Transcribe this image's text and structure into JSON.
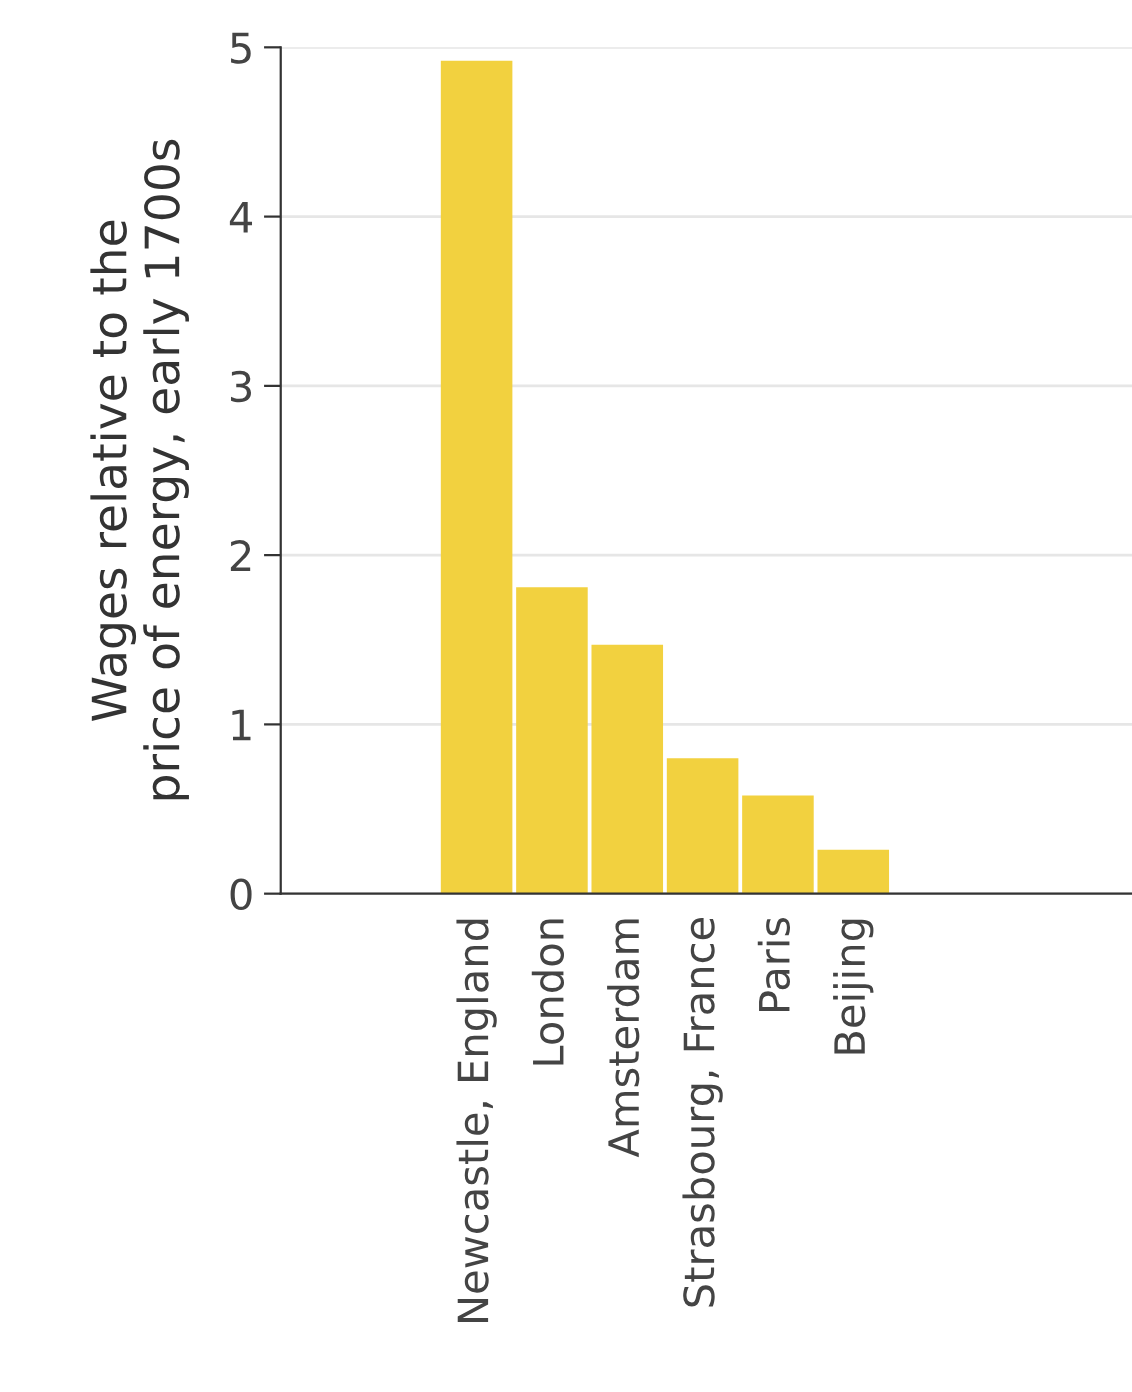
{
  "chart_data": {
    "type": "bar",
    "ylabel": "Wages relative to the\nprice of energy, early 1700s",
    "categories": [
      "Newcastle, England",
      "London",
      "Amsterdam",
      "Strasbourg, France",
      "Paris",
      "Beijing"
    ],
    "values": [
      4.92,
      1.81,
      1.47,
      0.8,
      0.58,
      0.26
    ],
    "color": "#f2d13f",
    "ylim": [
      0,
      5
    ],
    "yticks": [
      0,
      1,
      2,
      3,
      4,
      5
    ],
    "grid": "y",
    "legend": false
  }
}
